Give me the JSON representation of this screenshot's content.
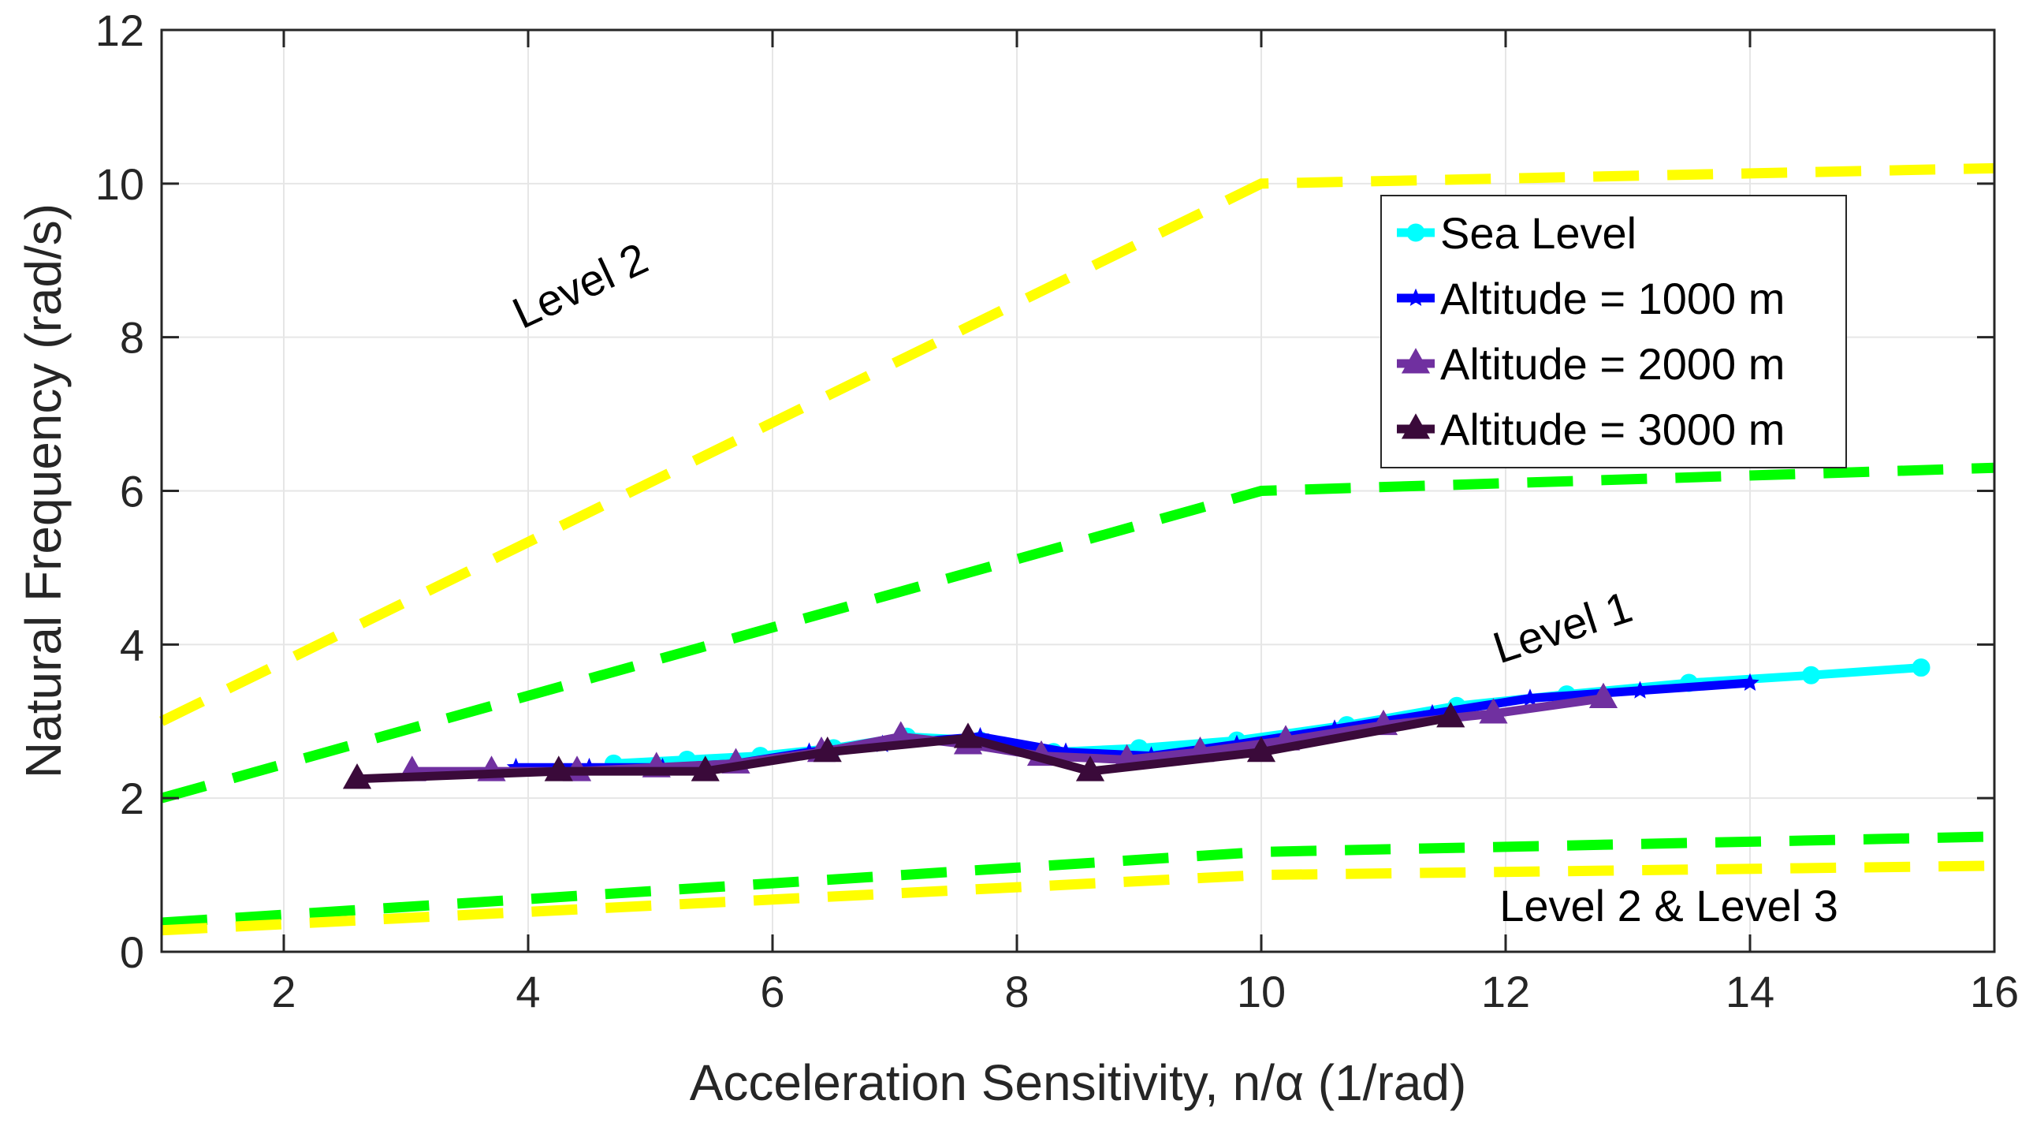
{
  "chart_data": {
    "type": "line",
    "title": "",
    "xlabel": "Acceleration Sensitivity, n/α (1/rad)",
    "ylabel": "Natural Frequency (rad/s)",
    "xlim": [
      1,
      16
    ],
    "ylim": [
      0,
      12
    ],
    "xticks": [
      2,
      4,
      6,
      8,
      10,
      12,
      14,
      16
    ],
    "yticks": [
      0,
      2,
      4,
      6,
      8,
      10,
      12
    ],
    "grid": true,
    "legend_position": "top-right",
    "boundaries": [
      {
        "name": "Level 2 upper",
        "color": "#ffff00",
        "style": "dashed",
        "x": [
          1,
          10,
          16
        ],
        "y": [
          3.0,
          10.0,
          10.2
        ]
      },
      {
        "name": "Level 1 upper",
        "color": "#00ff00",
        "style": "dashed",
        "x": [
          1,
          10,
          16
        ],
        "y": [
          2.0,
          6.0,
          6.3
        ]
      },
      {
        "name": "Level 1 lower",
        "color": "#00ff00",
        "style": "dashed",
        "x": [
          1,
          10,
          16
        ],
        "y": [
          0.38,
          1.3,
          1.5
        ]
      },
      {
        "name": "Level 2 & 3 lower",
        "color": "#ffff00",
        "style": "dashed",
        "x": [
          1,
          10,
          16
        ],
        "y": [
          0.28,
          1.0,
          1.12
        ]
      }
    ],
    "series": [
      {
        "name": "Sea Level",
        "color": "#00ffff",
        "marker": "circle",
        "x": [
          4.7,
          5.3,
          5.9,
          6.5,
          7.1,
          7.7,
          8.3,
          9.0,
          9.8,
          10.7,
          11.6,
          12.5,
          13.5,
          14.5,
          15.4
        ],
        "y": [
          2.45,
          2.5,
          2.55,
          2.65,
          2.8,
          2.75,
          2.6,
          2.65,
          2.75,
          2.95,
          3.2,
          3.35,
          3.5,
          3.6,
          3.7
        ]
      },
      {
        "name": "Altitude = 1000 m",
        "color": "#0000ff",
        "marker": "star",
        "x": [
          3.9,
          4.5,
          5.1,
          5.7,
          6.3,
          6.9,
          7.7,
          8.4,
          9.1,
          9.8,
          10.6,
          11.4,
          12.2,
          13.1,
          14.0
        ],
        "y": [
          2.4,
          2.4,
          2.4,
          2.45,
          2.6,
          2.7,
          2.8,
          2.6,
          2.55,
          2.7,
          2.9,
          3.1,
          3.3,
          3.4,
          3.5
        ]
      },
      {
        "name": "Altitude = 2000 m",
        "color": "#7030a0",
        "marker": "triangle",
        "x": [
          3.05,
          3.7,
          4.4,
          5.05,
          5.7,
          6.4,
          7.05,
          7.6,
          8.2,
          8.9,
          9.5,
          10.2,
          11.0,
          11.9,
          12.8
        ],
        "y": [
          2.35,
          2.35,
          2.35,
          2.4,
          2.45,
          2.6,
          2.8,
          2.7,
          2.55,
          2.5,
          2.6,
          2.75,
          2.95,
          3.1,
          3.3
        ]
      },
      {
        "name": "Altitude = 3000 m",
        "color": "#3a0a3a",
        "marker": "triangle",
        "x": [
          2.6,
          4.25,
          5.45,
          6.45,
          7.6,
          8.6,
          10.0,
          11.55
        ],
        "y": [
          2.25,
          2.35,
          2.35,
          2.6,
          2.78,
          2.35,
          2.6,
          3.05
        ]
      }
    ],
    "annotations": [
      {
        "text": "Level 2",
        "x": 3.95,
        "y": 8.1,
        "rotate": -25
      },
      {
        "text": "Level 1",
        "x": 11.95,
        "y": 3.75,
        "rotate": -18
      },
      {
        "text": "Level 2 & Level 3",
        "x": 11.95,
        "y": 0.4,
        "rotate": 0
      }
    ]
  }
}
